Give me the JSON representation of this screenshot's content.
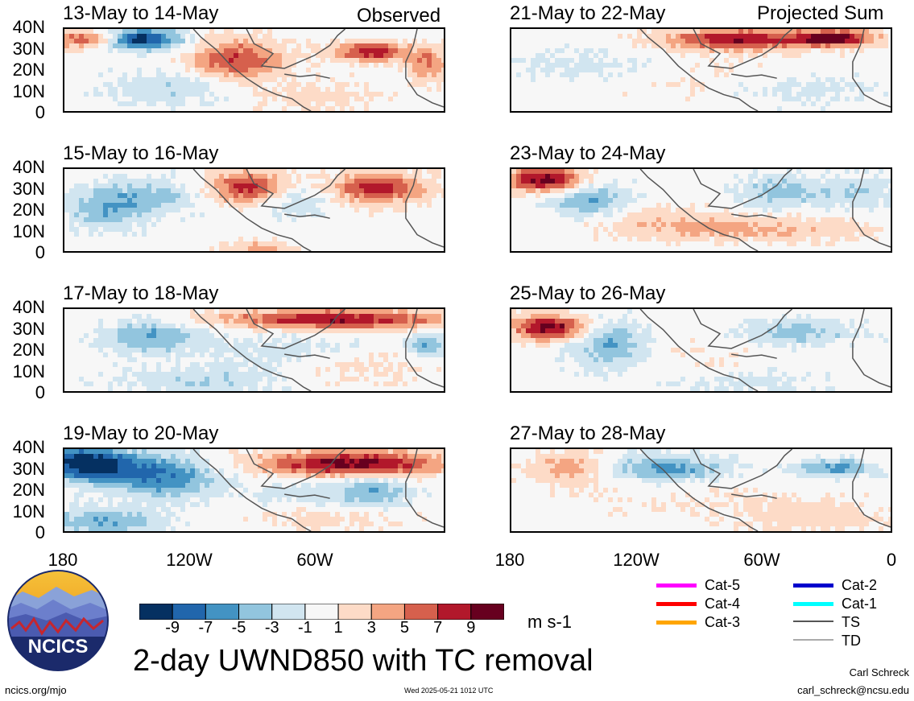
{
  "column_headers": {
    "left": "Observed",
    "right": "Projected Sum"
  },
  "panels": [
    {
      "title": "13-May to 14-May",
      "col": "left",
      "row": 0
    },
    {
      "title": "15-May to 16-May",
      "col": "left",
      "row": 1
    },
    {
      "title": "17-May to 18-May",
      "col": "left",
      "row": 2
    },
    {
      "title": "19-May to 20-May",
      "col": "left",
      "row": 3
    },
    {
      "title": "21-May to 22-May",
      "col": "right",
      "row": 0
    },
    {
      "title": "23-May to 24-May",
      "col": "right",
      "row": 1
    },
    {
      "title": "25-May to 26-May",
      "col": "right",
      "row": 2
    },
    {
      "title": "27-May to 28-May",
      "col": "right",
      "row": 3
    }
  ],
  "y_ticks": [
    "40N",
    "30N",
    "20N",
    "10N",
    "0"
  ],
  "x_ticks": [
    "180",
    "120W",
    "60W",
    "0"
  ],
  "colorbar": {
    "labels": [
      "-9",
      "-7",
      "-5",
      "-3",
      "-1",
      "1",
      "3",
      "5",
      "7",
      "9"
    ],
    "colors": [
      "#053061",
      "#2166ac",
      "#4393c3",
      "#92c5de",
      "#d1e5f0",
      "#f7f7f7",
      "#fddbc7",
      "#f4a582",
      "#d6604d",
      "#b2182b",
      "#67001f"
    ],
    "units": "m s-1"
  },
  "title": "2-day UWND850 with TC removal",
  "logo_text": "NCICS",
  "footer": {
    "url": "ncics.org/mjo",
    "timestamp": "Wed 2025-05-21 1012 UTC",
    "author": "Carl Schreck",
    "email": "carl_schreck@ncsu.edu"
  },
  "legend": {
    "col1": [
      {
        "label": "Cat-5",
        "color": "#ff00ff"
      },
      {
        "label": "Cat-4",
        "color": "#ff0000"
      },
      {
        "label": "Cat-3",
        "color": "#ffa500"
      }
    ],
    "col2": [
      {
        "label": "Cat-2",
        "color": "#0000cc"
      },
      {
        "label": "Cat-1",
        "color": "#00ffff"
      },
      {
        "label": "TS",
        "color": "#555555"
      },
      {
        "label": "TD",
        "color": "#aaaaaa"
      }
    ]
  }
}
